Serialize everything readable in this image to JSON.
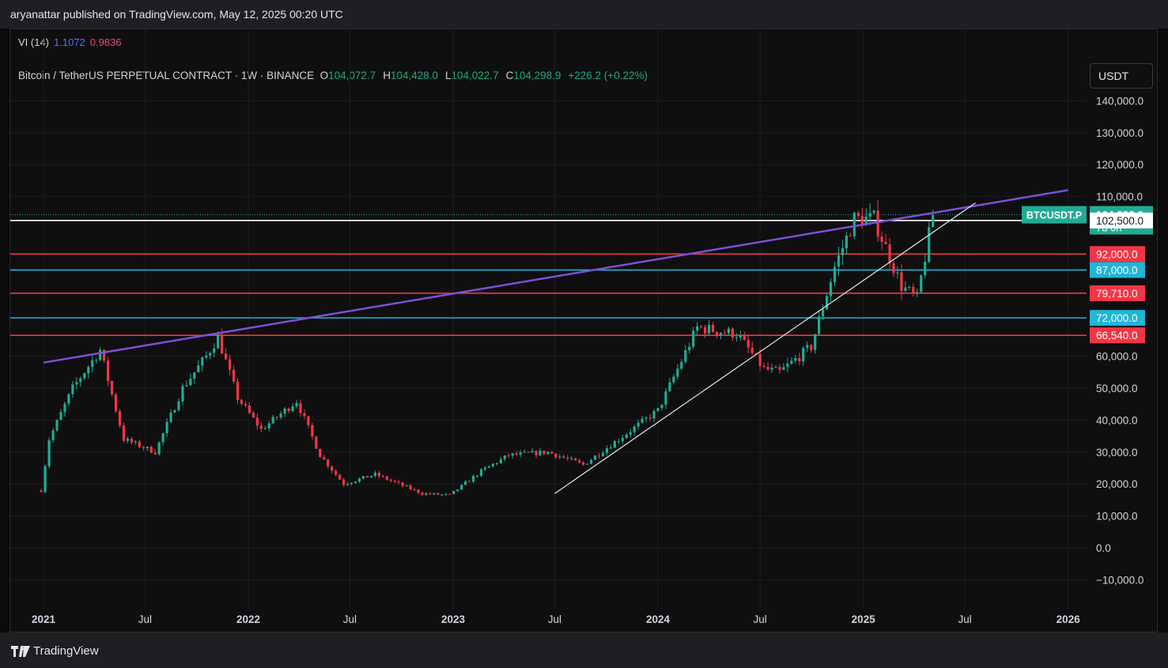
{
  "header": {
    "published": "aryanattar published on TradingView.com, May 12, 2025 00:20 UTC"
  },
  "indicator": {
    "name": "VI (14)",
    "vi_plus": "1.1072",
    "vi_minus": "0.9836"
  },
  "symbol": {
    "title": "Bitcoin / TetherUS PERPETUAL CONTRACT · 1W · BINANCE",
    "open_label": "O",
    "open": "104,072.7",
    "high_label": "H",
    "high": "104,428.0",
    "low_label": "L",
    "low": "104,022.7",
    "close_label": "C",
    "close": "104,298.9",
    "change": "+226.2 (+0.22%)"
  },
  "currency_button": "USDT",
  "footer": {
    "brand": "TradingView"
  },
  "colors": {
    "up": "#22ab94",
    "down": "#f23645",
    "vi_plus": "#5b6ef5",
    "vi_minus": "#e8486d",
    "purple_trend": "#7e4fd6",
    "red_level": "#f23645",
    "cyan_level": "#22b5d6"
  },
  "chart_data": {
    "type": "candlestick",
    "timeframe": "1W",
    "x_axis_labels": [
      "2021",
      "Jul",
      "2022",
      "Jul",
      "2023",
      "Jul",
      "2024",
      "Jul",
      "2025",
      "Jul",
      "2026"
    ],
    "y_axis_labels": [
      "140,000.0",
      "130,000.0",
      "120,000.0",
      "110,000.0",
      "60,000.0",
      "50,000.0",
      "40,000.0",
      "30,000.0",
      "20,000.0",
      "10,000.0",
      "0.0",
      "−10,000.0"
    ],
    "ylim": [
      -14000,
      154000
    ],
    "price_path_keyframes": [
      [
        "2020-12-28",
        18000
      ],
      [
        "2021-01-11",
        34000
      ],
      [
        "2021-02-22",
        50000
      ],
      [
        "2021-04-12",
        62000
      ],
      [
        "2021-05-24",
        34000
      ],
      [
        "2021-07-19",
        30000
      ],
      [
        "2021-09-06",
        50000
      ],
      [
        "2021-10-18",
        60000
      ],
      [
        "2021-11-08",
        66000
      ],
      [
        "2021-12-13",
        47000
      ],
      [
        "2022-01-24",
        37000
      ],
      [
        "2022-03-28",
        46000
      ],
      [
        "2022-05-09",
        29000
      ],
      [
        "2022-06-20",
        20000
      ],
      [
        "2022-08-15",
        23000
      ],
      [
        "2022-11-07",
        17000
      ],
      [
        "2022-12-26",
        16500
      ],
      [
        "2023-02-20",
        24000
      ],
      [
        "2023-04-10",
        29000
      ],
      [
        "2023-06-19",
        30000
      ],
      [
        "2023-08-21",
        26000
      ],
      [
        "2023-10-23",
        34000
      ],
      [
        "2024-01-01",
        43000
      ],
      [
        "2024-03-11",
        69000
      ],
      [
        "2024-05-20",
        67000
      ],
      [
        "2024-07-08",
        56000
      ],
      [
        "2024-08-05",
        55000
      ],
      [
        "2024-09-30",
        63000
      ],
      [
        "2024-11-11",
        88000
      ],
      [
        "2024-12-16",
        103000
      ],
      [
        "2025-01-20",
        103000
      ],
      [
        "2025-03-10",
        82000
      ],
      [
        "2025-04-07",
        78000
      ],
      [
        "2025-05-05",
        104298.9
      ]
    ],
    "horizontal_levels": [
      {
        "value": 104298.9,
        "label": "104,298.9",
        "sublabel": "7d 0h",
        "tag": "BTCUSDT.P",
        "kind": "current"
      },
      {
        "value": 102500.0,
        "label": "102,500.0",
        "kind": "white"
      },
      {
        "value": 92000.0,
        "label": "92,000.0",
        "kind": "red"
      },
      {
        "value": 87000.0,
        "label": "87,000.0",
        "kind": "cyan"
      },
      {
        "value": 79710.0,
        "label": "79,710.0",
        "kind": "red"
      },
      {
        "value": 72000.0,
        "label": "72,000.0",
        "kind": "cyan"
      },
      {
        "value": 66540.0,
        "label": "66,540.0",
        "kind": "red"
      }
    ],
    "trendlines": [
      {
        "kind": "purple",
        "from": [
          "2021-01-01",
          58000
        ],
        "to": [
          "2026-01-01",
          112000
        ]
      },
      {
        "kind": "white",
        "from": [
          "2023-07-01",
          17000
        ],
        "to": [
          "2025-07-20",
          108000
        ]
      }
    ]
  }
}
